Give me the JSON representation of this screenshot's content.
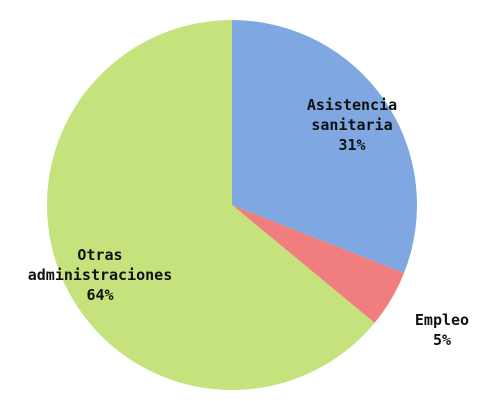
{
  "chart_data": {
    "type": "pie",
    "categories": [
      "Asistencia sanitaria",
      "Empleo",
      "Otras administraciones"
    ],
    "values": [
      31,
      5,
      64
    ],
    "value_labels": [
      "31%",
      "5%",
      "64%"
    ],
    "colors": [
      "#7fa8e3",
      "#f07e7e",
      "#c5e27c"
    ]
  }
}
